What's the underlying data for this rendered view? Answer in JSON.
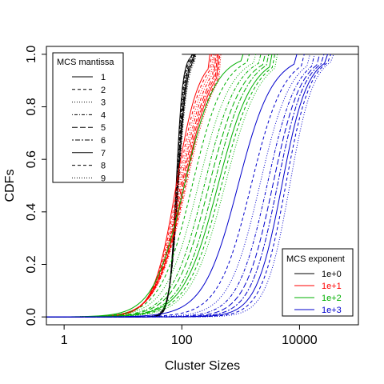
{
  "chart_data": {
    "type": "line",
    "xlabel": "Cluster Sizes",
    "ylabel": "CDFs",
    "x_scale": "log10",
    "xlim": [
      0.5,
      100000
    ],
    "ylim": [
      -0.03,
      1.03
    ],
    "x_ticks": [
      1,
      100,
      10000
    ],
    "x_tick_labels": [
      "1",
      "100",
      "10000"
    ],
    "y_ticks": [
      0.0,
      0.2,
      0.4,
      0.6,
      0.8,
      1.0
    ],
    "y_tick_labels": [
      "0.0",
      "0.2",
      "0.4",
      "0.6",
      "0.8",
      "1.0"
    ],
    "grid": false,
    "legend_mantissa": {
      "title": "MCS mantissa",
      "placement": "top-left",
      "entries": [
        "1",
        "2",
        "3",
        "4",
        "5",
        "6",
        "7",
        "8",
        "9"
      ]
    },
    "legend_exponent": {
      "title": "MCS exponent",
      "placement": "bottom-right",
      "entries": [
        "1e+0",
        "1e+1",
        "1e+2",
        "1e+3"
      ]
    },
    "colors": {
      "1e+0": "#000000",
      "1e+1": "#ff0000",
      "1e+2": "#00b000",
      "1e+3": "#0000cc"
    },
    "line_types": [
      "solid",
      "dashed",
      "dotted",
      "dotdash",
      "longdash",
      "twodash",
      "solid",
      "dashed",
      "dotted"
    ],
    "series": [
      {
        "name": "1e+0",
        "mantissa": "1",
        "median": 80,
        "slope": 18,
        "xmin": 0.5,
        "xmax": 150
      },
      {
        "name": "1e+0",
        "mantissa": "2",
        "median": 81,
        "slope": 17,
        "xmin": 0.5,
        "xmax": 150
      },
      {
        "name": "1e+0",
        "mantissa": "3",
        "median": 82,
        "slope": 16,
        "xmin": 0.5,
        "xmax": 155
      },
      {
        "name": "1e+0",
        "mantissa": "4",
        "median": 83,
        "slope": 16,
        "xmin": 0.5,
        "xmax": 155
      },
      {
        "name": "1e+0",
        "mantissa": "5",
        "median": 84,
        "slope": 15,
        "xmin": 0.5,
        "xmax": 160
      },
      {
        "name": "1e+0",
        "mantissa": "6",
        "median": 85,
        "slope": 15,
        "xmin": 0.5,
        "xmax": 160
      },
      {
        "name": "1e+0",
        "mantissa": "7",
        "median": 86,
        "slope": 14,
        "xmin": 0.5,
        "xmax": 165
      },
      {
        "name": "1e+0",
        "mantissa": "8",
        "median": 87,
        "slope": 14,
        "xmin": 0.5,
        "xmax": 170
      },
      {
        "name": "1e+0",
        "mantissa": "9",
        "median": 88,
        "slope": 13,
        "xmin": 0.5,
        "xmax": 175
      },
      {
        "name": "1e+1",
        "mantissa": "1",
        "median": 80,
        "slope": 5.2,
        "xmin": 0.5,
        "xmax": 300
      },
      {
        "name": "1e+1",
        "mantissa": "2",
        "median": 85,
        "slope": 5.0,
        "xmin": 0.5,
        "xmax": 320
      },
      {
        "name": "1e+1",
        "mantissa": "3",
        "median": 90,
        "slope": 4.8,
        "xmin": 0.5,
        "xmax": 340
      },
      {
        "name": "1e+1",
        "mantissa": "4",
        "median": 95,
        "slope": 4.6,
        "xmin": 0.5,
        "xmax": 360
      },
      {
        "name": "1e+1",
        "mantissa": "5",
        "median": 100,
        "slope": 4.4,
        "xmin": 0.5,
        "xmax": 380
      },
      {
        "name": "1e+1",
        "mantissa": "6",
        "median": 105,
        "slope": 4.3,
        "xmin": 0.5,
        "xmax": 400
      },
      {
        "name": "1e+1",
        "mantissa": "7",
        "median": 110,
        "slope": 4.2,
        "xmin": 0.5,
        "xmax": 420
      },
      {
        "name": "1e+1",
        "mantissa": "8",
        "median": 115,
        "slope": 4.1,
        "xmin": 0.5,
        "xmax": 440
      },
      {
        "name": "1e+1",
        "mantissa": "9",
        "median": 120,
        "slope": 4.0,
        "xmin": 0.5,
        "xmax": 460
      },
      {
        "name": "1e+2",
        "mantissa": "1",
        "median": 110,
        "slope": 3.8,
        "xmin": 0.5,
        "xmax": 1100
      },
      {
        "name": "1e+2",
        "mantissa": "2",
        "median": 150,
        "slope": 3.7,
        "xmin": 0.5,
        "xmax": 1400
      },
      {
        "name": "1e+2",
        "mantissa": "3",
        "median": 190,
        "slope": 3.6,
        "xmin": 0.5,
        "xmax": 1800
      },
      {
        "name": "1e+2",
        "mantissa": "4",
        "median": 240,
        "slope": 3.6,
        "xmin": 0.5,
        "xmax": 2200
      },
      {
        "name": "1e+2",
        "mantissa": "5",
        "median": 290,
        "slope": 3.5,
        "xmin": 0.5,
        "xmax": 2600
      },
      {
        "name": "1e+2",
        "mantissa": "6",
        "median": 350,
        "slope": 3.5,
        "xmin": 0.5,
        "xmax": 3000
      },
      {
        "name": "1e+2",
        "mantissa": "7",
        "median": 410,
        "slope": 3.4,
        "xmin": 0.5,
        "xmax": 3400
      },
      {
        "name": "1e+2",
        "mantissa": "8",
        "median": 470,
        "slope": 3.4,
        "xmin": 0.5,
        "xmax": 3800
      },
      {
        "name": "1e+2",
        "mantissa": "9",
        "median": 540,
        "slope": 3.4,
        "xmin": 0.5,
        "xmax": 4200
      },
      {
        "name": "1e+3",
        "mantissa": "1",
        "median": 900,
        "slope": 3.4,
        "xmin": 0.5,
        "xmax": 9000
      },
      {
        "name": "1e+3",
        "mantissa": "2",
        "median": 1500,
        "slope": 3.6,
        "xmin": 0.5,
        "xmax": 12000
      },
      {
        "name": "1e+3",
        "mantissa": "3",
        "median": 2100,
        "slope": 3.8,
        "xmin": 0.5,
        "xmax": 15000
      },
      {
        "name": "1e+3",
        "mantissa": "4",
        "median": 2800,
        "slope": 4.0,
        "xmin": 0.5,
        "xmax": 18000
      },
      {
        "name": "1e+3",
        "mantissa": "5",
        "median": 3500,
        "slope": 4.2,
        "xmin": 0.5,
        "xmax": 22000
      },
      {
        "name": "1e+3",
        "mantissa": "6",
        "median": 4200,
        "slope": 4.4,
        "xmin": 0.5,
        "xmax": 26000
      },
      {
        "name": "1e+3",
        "mantissa": "7",
        "median": 5000,
        "slope": 4.6,
        "xmin": 0.5,
        "xmax": 30000
      },
      {
        "name": "1e+3",
        "mantissa": "8",
        "median": 5800,
        "slope": 4.8,
        "xmin": 0.5,
        "xmax": 34000
      },
      {
        "name": "1e+3",
        "mantissa": "9",
        "median": 6800,
        "slope": 5.0,
        "xmin": 0.5,
        "xmax": 38000
      }
    ],
    "reference_line": {
      "name": "upper-bound",
      "x_start": 100,
      "x_end": 100000,
      "y": 1.0
    }
  }
}
